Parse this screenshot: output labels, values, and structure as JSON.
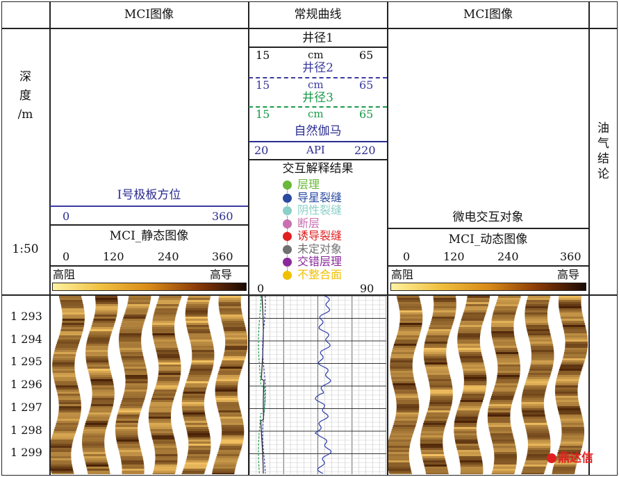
{
  "headers": {
    "mci_left": "MCI图像",
    "conventional": "常规曲线",
    "mci_right": "MCI图像",
    "depth": [
      "深",
      "度",
      "/m"
    ],
    "conclusion": [
      "油",
      "气",
      "结",
      "论"
    ],
    "scale": "1:50"
  },
  "left_panel": {
    "orientation_title": "I号极板方位",
    "orientation_min": "0",
    "orientation_max": "360",
    "static_title": "MCI_静态图像",
    "ticks": [
      "0",
      "120",
      "240",
      "360"
    ],
    "low_label": "高阻",
    "high_label": "高导"
  },
  "right_panel": {
    "interactive_title": "微电交互对象",
    "dynamic_title": "MCI_动态图像",
    "ticks": [
      "0",
      "120",
      "240",
      "360"
    ],
    "low_label": "高阻",
    "high_label": "高导"
  },
  "curves": [
    {
      "name": "井径1",
      "min": "15",
      "unit": "cm",
      "max": "65",
      "color": "#222222",
      "dash": false
    },
    {
      "name": "井径2",
      "min": "15",
      "unit": "cm",
      "max": "65",
      "color": "#3a3aa0",
      "dash": true
    },
    {
      "name": "井径3",
      "min": "15",
      "unit": "cm",
      "max": "65",
      "color": "#1a9a4a",
      "dash": true
    },
    {
      "name": "自然伽马",
      "min": "20",
      "unit": "API",
      "max": "220",
      "color": "#2a2a90",
      "dash": false
    }
  ],
  "interpretation": {
    "title": "交互解释结果",
    "items": [
      {
        "label": "层理",
        "color": "#6ab83a"
      },
      {
        "label": "导星裂缝",
        "color": "#2a4aa0"
      },
      {
        "label": "阴性裂缝",
        "color": "#8ad0c8"
      },
      {
        "label": "断层",
        "color": "#c870b0"
      },
      {
        "label": "诱导裂缝",
        "color": "#e02020"
      },
      {
        "label": "未定对象",
        "color": "#707070"
      },
      {
        "label": "交错层理",
        "color": "#8a2a9a"
      },
      {
        "label": "不整合面",
        "color": "#f0c000"
      }
    ],
    "scale_min": "0",
    "scale_max": "90"
  },
  "depths": [
    "1 293",
    "1 294",
    "1 295",
    "1 296",
    "1 297",
    "1 298",
    "1 299"
  ],
  "watermark": "鼎达信",
  "colors": {
    "colorbar_start": "#fff2a0",
    "colorbar_mid": "#d88a18",
    "colorbar_end": "#1a0a04",
    "image_light": "#f2c060",
    "image_dark": "#4a2206",
    "gap_white": "#ffffff"
  }
}
